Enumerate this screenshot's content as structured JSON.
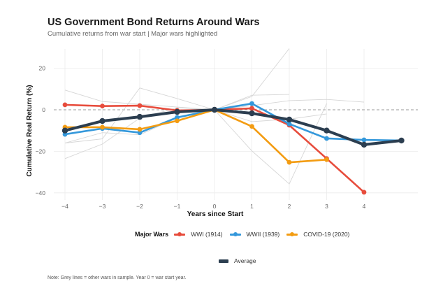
{
  "chart_data": {
    "type": "line",
    "title": "US Government Bond Returns Around Wars",
    "subtitle": "Cumulative returns from war start | Major wars highlighted",
    "xlabel": "Years since Start",
    "ylabel": "Cumulative Real Return (%)",
    "xlim": [
      -4.3,
      5.5
    ],
    "ylim": [
      -43,
      32
    ],
    "x_ticks": [
      -4,
      -3,
      -2,
      -1,
      0,
      1,
      2,
      3,
      4
    ],
    "x_tick_labels": [
      "−4",
      "−3",
      "−2",
      "−1",
      "0",
      "1",
      "2",
      "3",
      "4"
    ],
    "y_ticks": [
      20,
      0,
      -20,
      -40
    ],
    "y_tick_labels": [
      "20",
      "0",
      "−20",
      "−40"
    ],
    "reference_line": {
      "y": 0,
      "style": "dashed",
      "color": "#999999"
    },
    "grid": true,
    "background_series": [
      {
        "name": "other-war-1",
        "x": [
          -4,
          -3,
          0
        ],
        "y": [
          9.5,
          4,
          0
        ]
      },
      {
        "name": "other-war-2",
        "x": [
          -4,
          -3,
          -2,
          -1,
          0
        ],
        "y": [
          -23.5,
          -16.5,
          -4,
          1,
          0
        ]
      },
      {
        "name": "other-war-3",
        "x": [
          -4,
          -3,
          -2,
          -1,
          0
        ],
        "y": [
          -16,
          -14,
          10.5,
          5.4,
          0
        ]
      },
      {
        "name": "other-war-4",
        "x": [
          -4,
          -3,
          -2,
          -1,
          0
        ],
        "y": [
          -16,
          -11,
          -12,
          -4,
          0
        ]
      },
      {
        "name": "other-war-5",
        "x": [
          0,
          1,
          2
        ],
        "y": [
          0,
          6.4,
          29.5
        ]
      },
      {
        "name": "other-war-6",
        "x": [
          0,
          1,
          2
        ],
        "y": [
          0,
          7,
          7.4
        ]
      },
      {
        "name": "other-war-7",
        "x": [
          0,
          1,
          2,
          3,
          4
        ],
        "y": [
          0,
          2,
          4.4,
          5,
          3.7
        ]
      },
      {
        "name": "other-war-8",
        "x": [
          0,
          1,
          2,
          3
        ],
        "y": [
          0,
          -19.8,
          -35.7,
          3
        ]
      },
      {
        "name": "other-war-9",
        "x": [
          0,
          1,
          2,
          3
        ],
        "y": [
          0,
          -5.7,
          -4.5,
          -2
        ]
      }
    ],
    "series": [
      {
        "name": "WWI (1914)",
        "color": "#E74C3C",
        "x": [
          -4,
          -3,
          -2,
          -1,
          0,
          1,
          2,
          3,
          4
        ],
        "y": [
          2.4,
          1.8,
          2.0,
          -0.3,
          0,
          0.7,
          -7.4,
          -23.5,
          -39.7
        ]
      },
      {
        "name": "WWII (1939)",
        "color": "#3498DB",
        "x": [
          -4,
          -3,
          -2,
          -1,
          0,
          1,
          2,
          3,
          4,
          5
        ],
        "y": [
          -11.8,
          -9.0,
          -11.0,
          -3.7,
          0,
          3.0,
          -6.8,
          -13.8,
          -14.5,
          -14.8
        ]
      },
      {
        "name": "COVID-19 (2020)",
        "color": "#F39C12",
        "x": [
          -4,
          -3,
          -2,
          -1,
          0,
          1,
          2,
          3
        ],
        "y": [
          -8.4,
          -8.4,
          -9.4,
          -5.3,
          0,
          -8.0,
          -25.3,
          -24.0
        ]
      },
      {
        "name": "Average",
        "color": "#2C3E50",
        "thick": true,
        "x": [
          -4,
          -3,
          -2,
          -1,
          0,
          1,
          2,
          3,
          4,
          5
        ],
        "y": [
          -10.0,
          -5.4,
          -3.4,
          -1.0,
          0,
          -1.7,
          -4.7,
          -10.0,
          -16.8,
          -14.8
        ]
      }
    ],
    "legend": {
      "title": "Major Wars",
      "placement": "bottom",
      "entries": [
        "WWI (1914)",
        "WWII (1939)",
        "COVID-19 (2020)"
      ],
      "secondary_entries": [
        "Average"
      ]
    },
    "note": "Note: Grey lines = other wars in sample. Year 0 = war start year."
  }
}
